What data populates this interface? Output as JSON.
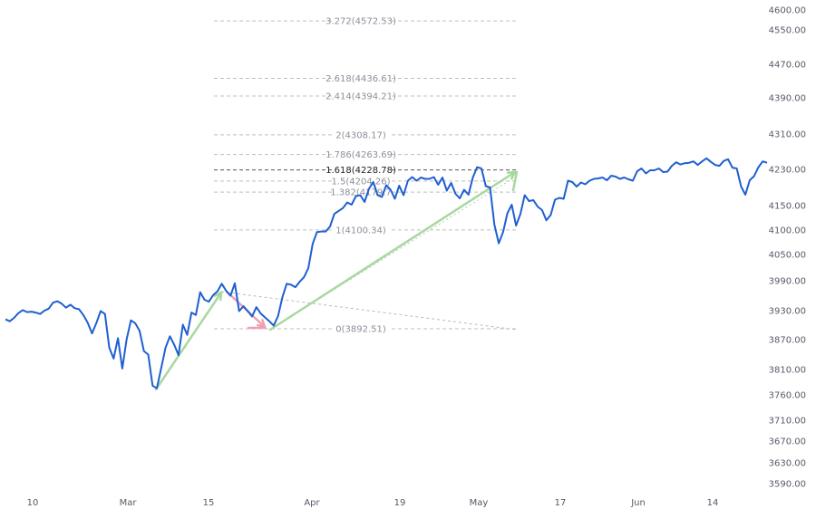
{
  "chart_data": {
    "type": "line",
    "title": "",
    "xlabel": "",
    "ylabel": "",
    "ylim": [
      3560,
      4610
    ],
    "y_ticks": [
      "4600.00",
      "4550.00",
      "4470.00",
      "4390.00",
      "4310.00",
      "4230.00",
      "4150.00",
      "4100.00",
      "4050.00",
      "3990.00",
      "3930.00",
      "3870.00",
      "3810.00",
      "3760.00",
      "3710.00",
      "3670.00",
      "3630.00",
      "3590.00"
    ],
    "x_ticks": [
      "10",
      "Mar",
      "15",
      "Apr",
      "19",
      "May",
      "17",
      "Jun",
      "14"
    ],
    "series": [
      {
        "name": "",
        "color": "#1f5fd1",
        "values": [
          3912,
          3908,
          3915,
          3925,
          3931,
          3927,
          3928,
          3926,
          3923,
          3930,
          3934,
          3946,
          3949,
          3944,
          3936,
          3942,
          3935,
          3933,
          3921,
          3905,
          3883,
          3904,
          3929,
          3923,
          3854,
          3832,
          3873,
          3812,
          3870,
          3910,
          3904,
          3888,
          3847,
          3840,
          3778,
          3773,
          3813,
          3854,
          3877,
          3860,
          3839,
          3901,
          3880,
          3926,
          3921,
          3967,
          3952,
          3948,
          3961,
          3969,
          3984,
          3970,
          3960,
          3985,
          3929,
          3939,
          3929,
          3918,
          3937,
          3924,
          3916,
          3908,
          3899,
          3919,
          3957,
          3984,
          3982,
          3977,
          3988,
          3998,
          4019,
          4072,
          4096,
          4097,
          4097,
          4107,
          4133,
          4139,
          4145,
          4157,
          4152,
          4171,
          4173,
          4158,
          4187,
          4202,
          4173,
          4169,
          4195,
          4185,
          4165,
          4194,
          4173,
          4205,
          4213,
          4205,
          4212,
          4209,
          4209,
          4213,
          4196,
          4212,
          4183,
          4200,
          4176,
          4166,
          4185,
          4174,
          4212,
          4235,
          4232,
          4193,
          4190,
          4111,
          4073,
          4096,
          4134,
          4152,
          4109,
          4133,
          4173,
          4160,
          4162,
          4148,
          4141,
          4120,
          4131,
          4163,
          4167,
          4165,
          4205,
          4202,
          4192,
          4201,
          4197,
          4205,
          4209,
          4210,
          4212,
          4206,
          4216,
          4214,
          4209,
          4212,
          4208,
          4205,
          4226,
          4232,
          4221,
          4228,
          4228,
          4232,
          4224,
          4225,
          4238,
          4246,
          4241,
          4244,
          4245,
          4248,
          4240,
          4248,
          4255,
          4247,
          4240,
          4238,
          4249,
          4253,
          4234,
          4232,
          4192,
          4174,
          4206,
          4215,
          4235,
          4248,
          4245
        ]
      }
    ],
    "fibonacci": {
      "levels": [
        {
          "label": "3.272(4572.53)",
          "value": 4572.53
        },
        {
          "label": "2.618(4436.61)",
          "value": 4436.61
        },
        {
          "label": "2.414(4394.21)",
          "value": 4394.21
        },
        {
          "label": "2(4308.17)",
          "value": 4308.17
        },
        {
          "label": "1.786(4263.69)",
          "value": 4263.69
        },
        {
          "label": "1.618(4228.78)",
          "value": 4228.78
        },
        {
          "label": "1.5(4204.26)",
          "value": 4204.26
        },
        {
          "label": "1.382(4179.7",
          "value": 4179.7
        },
        {
          "label": "1(4100.34)",
          "value": 4100.34
        },
        {
          "label": "0(3892.51)",
          "value": 3892.51
        }
      ],
      "active_level": "1.618(4228.78)"
    },
    "annotation_colors": {
      "up": "#a8d8a0",
      "down": "#f0a0b0"
    }
  }
}
